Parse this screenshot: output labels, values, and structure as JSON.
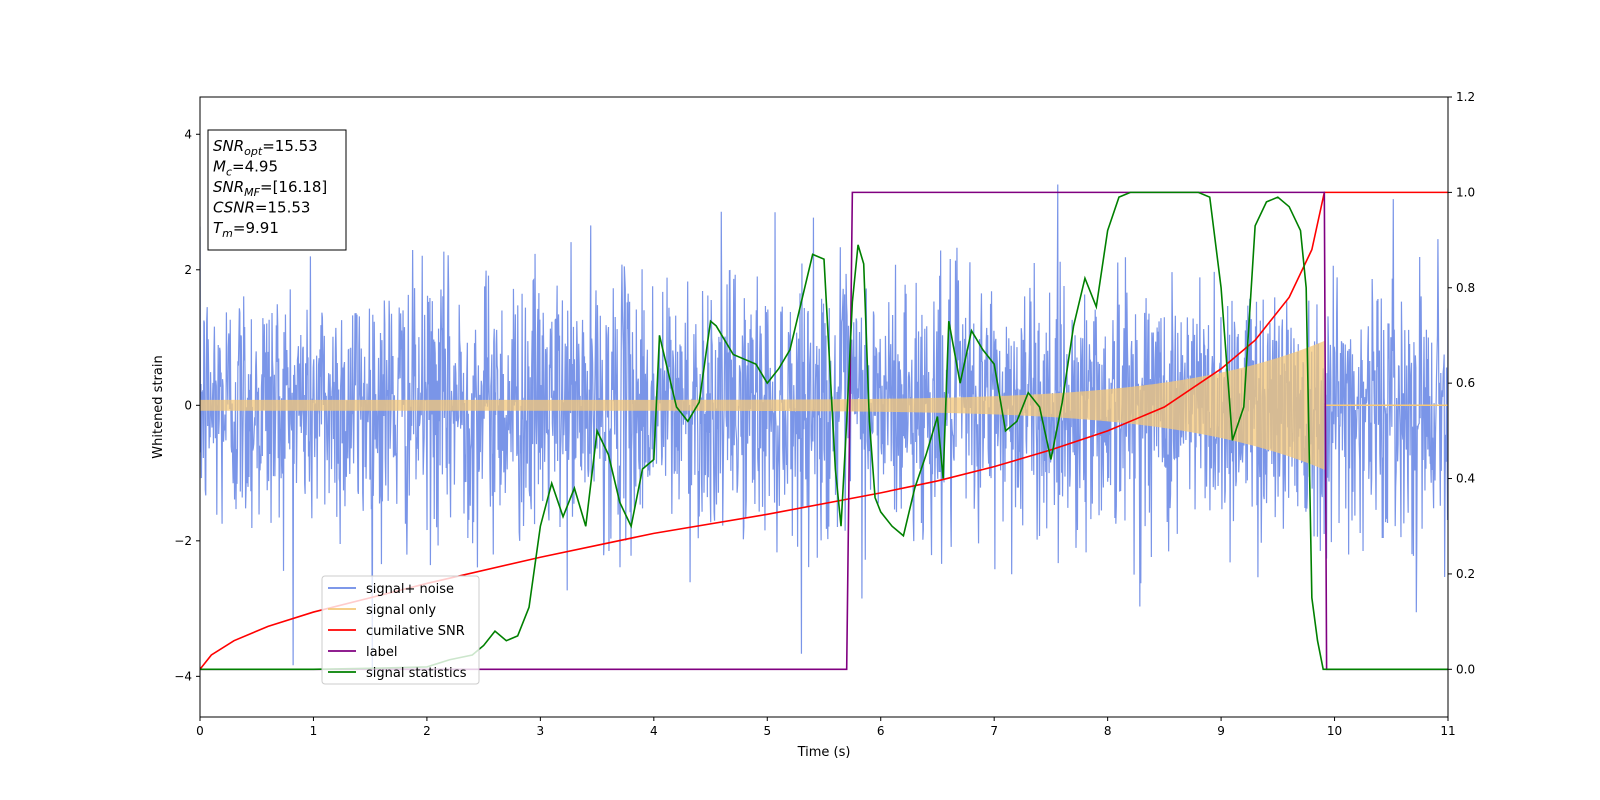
{
  "chart_data": {
    "type": "line",
    "title": "",
    "xlabel": "Time (s)",
    "ylabel": "Whitened strain",
    "xlim": [
      0,
      11
    ],
    "ylim_left": [
      -4.6,
      4.55
    ],
    "ylim_right": [
      -0.1,
      1.2
    ],
    "x_ticks": [
      "0",
      "1",
      "2",
      "3",
      "4",
      "5",
      "6",
      "7",
      "8",
      "9",
      "10",
      "11"
    ],
    "y_ticks_left": [
      "−4",
      "−2",
      "0",
      "2",
      "4"
    ],
    "y_ticks_right": [
      "0.0",
      "0.2",
      "0.4",
      "0.6",
      "0.8",
      "1.0",
      "1.2"
    ],
    "grid": false,
    "legend_position": "lower-left",
    "annotation": [
      {
        "name": "SNR",
        "sub": "opt",
        "value": "=15.53"
      },
      {
        "name": "M",
        "sub": "c",
        "value": "=4.95"
      },
      {
        "name": "SNR",
        "sub": "MF",
        "value": "=[16.18]"
      },
      {
        "name": "CSNR",
        "sub": "",
        "value": "=15.53"
      },
      {
        "name": "T",
        "sub": "m",
        "value": "=9.91"
      }
    ],
    "series": [
      {
        "name": "signal+ noise",
        "axis": "left",
        "color": "#6b8ae6",
        "description_values": "Gaussian-like noise with std ~1 spanning roughly -4 to 4 over 0-11 s"
      },
      {
        "name": "signal only",
        "axis": "left",
        "color": "#f5c878",
        "chirp": {
          "t_merge": 9.91,
          "amp_start": 0.08,
          "amp_end": 0.95
        }
      },
      {
        "name": "cumilative SNR",
        "axis": "right",
        "color": "#ff0000",
        "x": [
          0,
          0.1,
          0.3,
          0.6,
          1,
          2,
          3,
          4,
          5,
          6,
          6.5,
          7,
          7.5,
          8,
          8.5,
          9,
          9.3,
          9.6,
          9.8,
          9.91,
          11
        ],
        "y": [
          0.0,
          0.03,
          0.06,
          0.09,
          0.12,
          0.18,
          0.235,
          0.285,
          0.325,
          0.37,
          0.395,
          0.425,
          0.46,
          0.5,
          0.55,
          0.63,
          0.69,
          0.78,
          0.88,
          1.0,
          1.0
        ]
      },
      {
        "name": "label",
        "axis": "right",
        "color": "#800080",
        "x": [
          0,
          5.7,
          5.75,
          9.91,
          9.93,
          11
        ],
        "y": [
          0,
          0,
          1,
          1,
          0,
          0
        ]
      },
      {
        "name": "signal statistics",
        "axis": "right",
        "color": "#008000",
        "x": [
          0,
          1,
          1.5,
          2,
          2.2,
          2.4,
          2.5,
          2.6,
          2.7,
          2.8,
          2.9,
          3,
          3.1,
          3.2,
          3.3,
          3.4,
          3.5,
          3.6,
          3.7,
          3.8,
          3.9,
          4,
          4.05,
          4.1,
          4.2,
          4.3,
          4.4,
          4.5,
          4.55,
          4.6,
          4.7,
          4.8,
          4.9,
          5,
          5.1,
          5.2,
          5.3,
          5.4,
          5.5,
          5.6,
          5.65,
          5.7,
          5.75,
          5.8,
          5.85,
          5.9,
          5.95,
          6,
          6.1,
          6.2,
          6.3,
          6.4,
          6.5,
          6.55,
          6.6,
          6.7,
          6.8,
          6.9,
          7,
          7.1,
          7.2,
          7.3,
          7.4,
          7.5,
          7.6,
          7.7,
          7.8,
          7.9,
          8,
          8.1,
          8.2,
          8.3,
          8.4,
          8.5,
          8.6,
          8.7,
          8.8,
          8.9,
          9,
          9.1,
          9.2,
          9.3,
          9.4,
          9.5,
          9.6,
          9.7,
          9.75,
          9.8,
          9.85,
          9.9,
          10,
          10.5,
          11
        ],
        "y": [
          0,
          0.0,
          0.002,
          0.005,
          0.02,
          0.03,
          0.05,
          0.08,
          0.06,
          0.07,
          0.13,
          0.3,
          0.39,
          0.32,
          0.38,
          0.3,
          0.5,
          0.45,
          0.35,
          0.3,
          0.42,
          0.44,
          0.7,
          0.65,
          0.55,
          0.52,
          0.56,
          0.73,
          0.72,
          0.7,
          0.66,
          0.65,
          0.64,
          0.6,
          0.63,
          0.67,
          0.77,
          0.87,
          0.86,
          0.42,
          0.3,
          0.52,
          0.77,
          0.89,
          0.85,
          0.52,
          0.36,
          0.33,
          0.3,
          0.28,
          0.38,
          0.45,
          0.53,
          0.4,
          0.73,
          0.6,
          0.71,
          0.67,
          0.64,
          0.5,
          0.52,
          0.58,
          0.55,
          0.44,
          0.56,
          0.72,
          0.82,
          0.76,
          0.92,
          0.99,
          1.0,
          1.0,
          1.0,
          1.0,
          1.0,
          1.0,
          1.0,
          0.99,
          0.8,
          0.48,
          0.55,
          0.93,
          0.98,
          0.99,
          0.97,
          0.92,
          0.8,
          0.15,
          0.06,
          0.0,
          0.0,
          0.0,
          0.0
        ]
      }
    ]
  }
}
